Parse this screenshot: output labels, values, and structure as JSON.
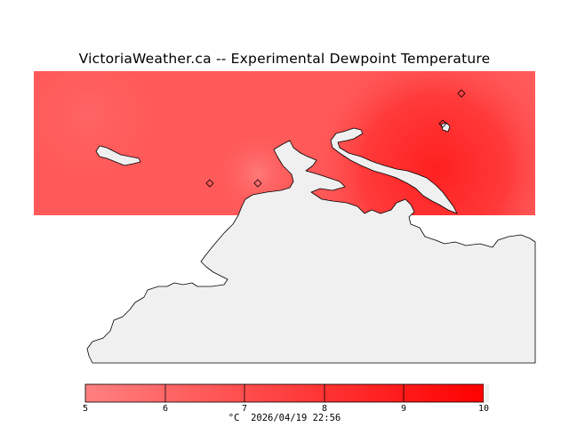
{
  "title": "VictoriaWeather.ca -- Experimental Dewpoint Temperature",
  "legend": {
    "ticks": [
      "5",
      "6",
      "7",
      "8",
      "9",
      "10"
    ],
    "unit": "°C",
    "timestamp": "2026/04/19 22:56",
    "color_low": "#ff8080",
    "color_high": "#ff0000"
  },
  "colors": {
    "field_base": "#ff5a5a",
    "field_hot": "#ff2020",
    "land": "#f0f0f0",
    "coastline": "#000000"
  },
  "stations": [
    "station-1",
    "station-2",
    "station-3",
    "station-4"
  ]
}
